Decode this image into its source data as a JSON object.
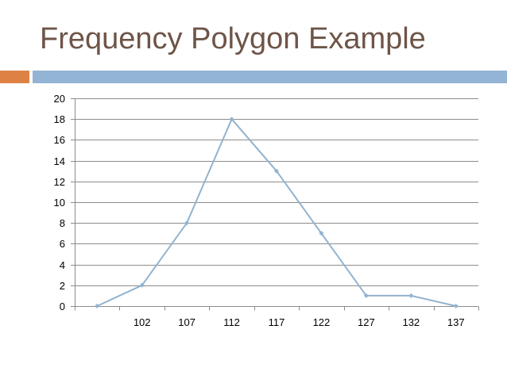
{
  "slide": {
    "title": "Frequency Polygon Example"
  },
  "colors": {
    "title": "#6e5548",
    "accent_orange": "#dd8145",
    "accent_blue": "#93b4d4",
    "series_line": "#92b3cf",
    "gridline": "#8c8c8c",
    "axis": "#8c8c8c"
  },
  "chart_data": {
    "type": "line",
    "title": "",
    "xlabel": "",
    "ylabel": "",
    "categories": [
      "",
      "102",
      "107",
      "112",
      "117",
      "122",
      "127",
      "132",
      "137"
    ],
    "series": [
      {
        "values": [
          0,
          2,
          8,
          18,
          13,
          7,
          1,
          1,
          0
        ]
      }
    ],
    "ylim": [
      0,
      20
    ],
    "y_ticks": [
      0,
      2,
      4,
      6,
      8,
      10,
      12,
      14,
      16,
      18,
      20
    ],
    "grid": true,
    "legend": "none",
    "markers": "diamond"
  }
}
